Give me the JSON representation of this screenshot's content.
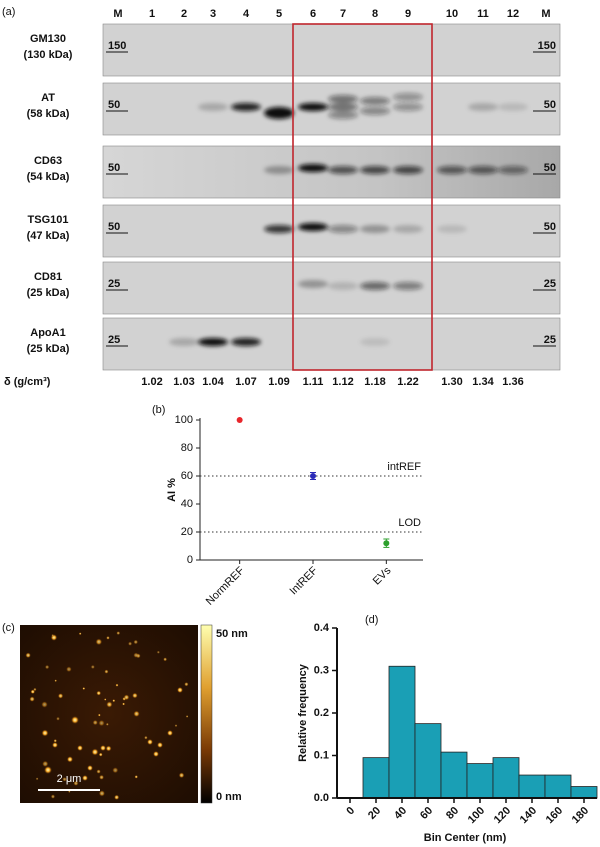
{
  "blot": {
    "panel_label": "(a)",
    "lanes": [
      "M",
      "1",
      "2",
      "3",
      "4",
      "5",
      "6",
      "7",
      "8",
      "9",
      "10",
      "11",
      "12",
      "M"
    ],
    "rows": [
      {
        "name": "GM130",
        "size": "(130 kDa)",
        "marker": "150"
      },
      {
        "name": "AT",
        "size": "(58 kDa)",
        "marker": "50"
      },
      {
        "name": "CD63",
        "size": "(54 kDa)",
        "marker": "50"
      },
      {
        "name": "TSG101",
        "size": "(47 kDa)",
        "marker": "50"
      },
      {
        "name": "CD81",
        "size": "(25 kDa)",
        "marker": "25"
      },
      {
        "name": "ApoA1",
        "size": "(25 kDa)",
        "marker": "25"
      }
    ],
    "density_label": "δ (g/cm³)",
    "densities": [
      "1.02",
      "1.03",
      "1.04",
      "1.07",
      "1.09",
      "1.11",
      "1.12",
      "1.18",
      "1.22",
      "1.30",
      "1.34",
      "1.36"
    ]
  },
  "afm": {
    "panel_label": "(c)",
    "colorbar_max": "50 nm",
    "colorbar_min": "0 nm",
    "scale_bar": "2 μm"
  },
  "chart_data": [
    {
      "type": "dot",
      "panel_label": "(b)",
      "y_label": "AI %",
      "categories": [
        "NormREF",
        "IntREF",
        "EVs"
      ],
      "values": [
        100,
        60,
        12
      ],
      "errors": [
        null,
        2.5,
        3
      ],
      "colors": [
        "#e8262b",
        "#2b2bb8",
        "#2ca02c"
      ],
      "ylim": [
        0,
        100
      ],
      "yticks": [
        0,
        20,
        40,
        60,
        80,
        100
      ],
      "reference_lines": [
        {
          "value": 60,
          "label": "intREF"
        },
        {
          "value": 20,
          "label": "LOD"
        }
      ]
    },
    {
      "type": "histogram",
      "panel_label": "(d)",
      "x_label": "Bin Center (nm)",
      "y_label": "Relative frequency",
      "bins": [
        10,
        30,
        50,
        70,
        90,
        110,
        130,
        150,
        170,
        190
      ],
      "values": [
        0.095,
        0.31,
        0.175,
        0.108,
        0.081,
        0.095,
        0.054,
        0.054,
        0.027
      ],
      "color": "#1a9fb5",
      "xlim": [
        -10,
        190
      ],
      "xticks": [
        0,
        20,
        40,
        60,
        80,
        100,
        120,
        140,
        160,
        180
      ],
      "ylim": [
        0,
        0.4
      ],
      "yticks": [
        {
          "value": 0,
          "label": "0.0"
        },
        0.1,
        0.2,
        0.3,
        0.4
      ]
    }
  ]
}
